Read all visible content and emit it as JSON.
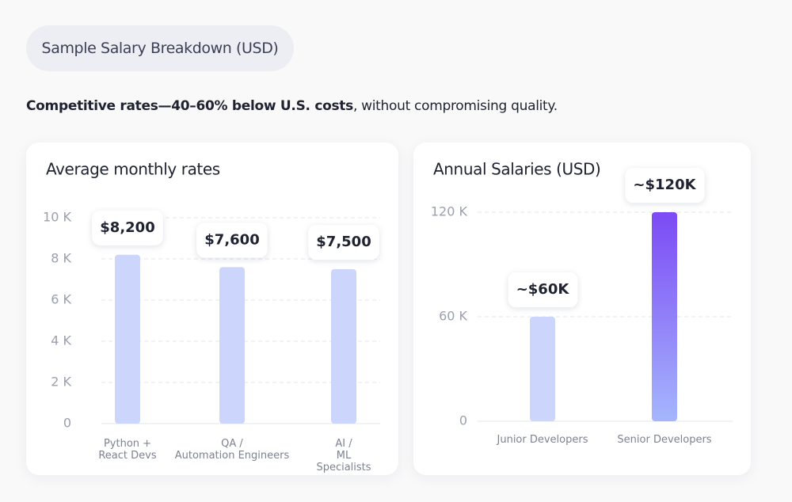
{
  "header": {
    "pill": "Sample Salary Breakdown (USD)",
    "tagline_bold": "Competitive rates—40–60% below U.S. costs",
    "tagline_rest": ", without compromising quality."
  },
  "chart_data": [
    {
      "type": "bar",
      "title": "Average monthly rates",
      "categories": [
        "Python +\nReact Devs",
        "QA /\nAutomation Engineers",
        "AI /\nML Specialists"
      ],
      "values": [
        8200,
        7600,
        7500
      ],
      "value_labels": [
        "$8,200",
        "$7,600",
        "$7,500"
      ],
      "colors": [
        "#ccd5fb",
        "#ccd5fb",
        "#ccd5fb"
      ],
      "ylim": [
        0,
        10000
      ],
      "yticks": [
        0,
        {
          "value": 2000,
          "label": "2 K"
        },
        {
          "value": 4000,
          "label": "4 K"
        },
        {
          "value": 6000,
          "label": "6 K"
        },
        {
          "value": 8000,
          "label": "8 K"
        },
        {
          "value": 10000,
          "label": "10 K"
        }
      ],
      "grid": true
    },
    {
      "type": "bar",
      "title": "Annual Salaries (USD)",
      "categories": [
        "Junior Developers",
        "Senior Developers"
      ],
      "values": [
        60000,
        120000
      ],
      "value_labels": [
        "~$60K",
        "~$120K"
      ],
      "colors": [
        "#ccd5fb",
        "#7c4af4"
      ],
      "ylim": [
        0,
        120000
      ],
      "yticks": [
        0,
        {
          "value": 60000,
          "label": "60 K"
        },
        {
          "value": 120000,
          "label": "120 K"
        }
      ],
      "grid": true
    }
  ]
}
